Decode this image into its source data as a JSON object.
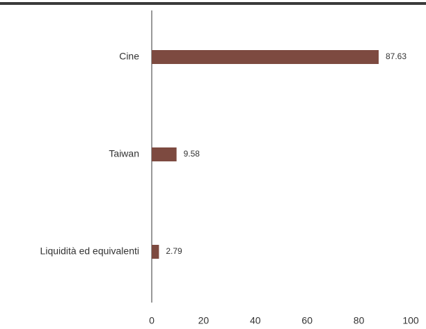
{
  "chart_data": {
    "type": "hbar",
    "categories": [
      "Cine",
      "Taiwan",
      "Liquidità ed equivalenti"
    ],
    "values": [
      87.63,
      9.58,
      2.79
    ],
    "color": "#7d4a40",
    "xlim": [
      0,
      100
    ],
    "xticks": [
      0,
      20,
      40,
      60,
      80,
      100
    ],
    "grid": false
  }
}
